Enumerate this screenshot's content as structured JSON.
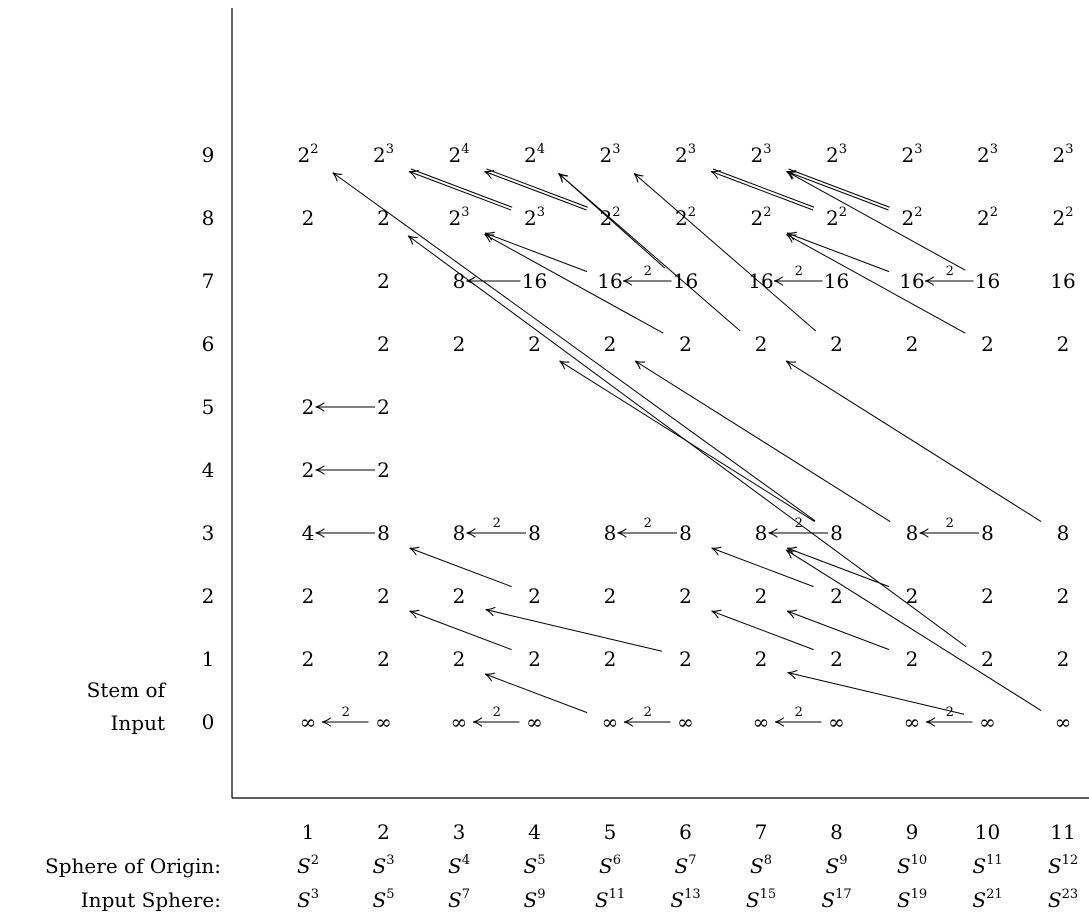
{
  "axis_captions": {
    "stem_line1": "Stem of",
    "stem_line2": "Input",
    "sphere_of_origin": "Sphere of Origin:",
    "input_sphere": "Input Sphere:"
  },
  "rows": [
    "0",
    "1",
    "2",
    "3",
    "4",
    "5",
    "6",
    "7",
    "8",
    "9"
  ],
  "columns": [
    "1",
    "2",
    "3",
    "4",
    "5",
    "6",
    "7",
    "8",
    "9",
    "10",
    "11"
  ],
  "sphere_of_origin": [
    {
      "base": "S",
      "exp": "2"
    },
    {
      "base": "S",
      "exp": "3"
    },
    {
      "base": "S",
      "exp": "4"
    },
    {
      "base": "S",
      "exp": "5"
    },
    {
      "base": "S",
      "exp": "6"
    },
    {
      "base": "S",
      "exp": "7"
    },
    {
      "base": "S",
      "exp": "8"
    },
    {
      "base": "S",
      "exp": "9"
    },
    {
      "base": "S",
      "exp": "10"
    },
    {
      "base": "S",
      "exp": "11"
    },
    {
      "base": "S",
      "exp": "12"
    }
  ],
  "input_sphere": [
    {
      "base": "S",
      "exp": "3"
    },
    {
      "base": "S",
      "exp": "5"
    },
    {
      "base": "S",
      "exp": "7"
    },
    {
      "base": "S",
      "exp": "9"
    },
    {
      "base": "S",
      "exp": "11"
    },
    {
      "base": "S",
      "exp": "13"
    },
    {
      "base": "S",
      "exp": "15"
    },
    {
      "base": "S",
      "exp": "17"
    },
    {
      "base": "S",
      "exp": "19"
    },
    {
      "base": "S",
      "exp": "21"
    },
    {
      "base": "S",
      "exp": "23"
    }
  ],
  "entries": [
    {
      "col": 1,
      "stem": 0,
      "text": "∞"
    },
    {
      "col": 2,
      "stem": 0,
      "text": "∞"
    },
    {
      "col": 3,
      "stem": 0,
      "text": "∞"
    },
    {
      "col": 4,
      "stem": 0,
      "text": "∞"
    },
    {
      "col": 5,
      "stem": 0,
      "text": "∞"
    },
    {
      "col": 6,
      "stem": 0,
      "text": "∞"
    },
    {
      "col": 7,
      "stem": 0,
      "text": "∞"
    },
    {
      "col": 8,
      "stem": 0,
      "text": "∞"
    },
    {
      "col": 9,
      "stem": 0,
      "text": "∞"
    },
    {
      "col": 10,
      "stem": 0,
      "text": "∞"
    },
    {
      "col": 11,
      "stem": 0,
      "text": "∞"
    },
    {
      "col": 1,
      "stem": 1,
      "text": "2"
    },
    {
      "col": 2,
      "stem": 1,
      "text": "2"
    },
    {
      "col": 3,
      "stem": 1,
      "text": "2"
    },
    {
      "col": 4,
      "stem": 1,
      "text": "2"
    },
    {
      "col": 5,
      "stem": 1,
      "text": "2"
    },
    {
      "col": 6,
      "stem": 1,
      "text": "2"
    },
    {
      "col": 7,
      "stem": 1,
      "text": "2"
    },
    {
      "col": 8,
      "stem": 1,
      "text": "2"
    },
    {
      "col": 9,
      "stem": 1,
      "text": "2"
    },
    {
      "col": 10,
      "stem": 1,
      "text": "2"
    },
    {
      "col": 11,
      "stem": 1,
      "text": "2"
    },
    {
      "col": 1,
      "stem": 2,
      "text": "2"
    },
    {
      "col": 2,
      "stem": 2,
      "text": "2"
    },
    {
      "col": 3,
      "stem": 2,
      "text": "2"
    },
    {
      "col": 4,
      "stem": 2,
      "text": "2"
    },
    {
      "col": 5,
      "stem": 2,
      "text": "2"
    },
    {
      "col": 6,
      "stem": 2,
      "text": "2"
    },
    {
      "col": 7,
      "stem": 2,
      "text": "2"
    },
    {
      "col": 8,
      "stem": 2,
      "text": "2"
    },
    {
      "col": 9,
      "stem": 2,
      "text": "2"
    },
    {
      "col": 10,
      "stem": 2,
      "text": "2"
    },
    {
      "col": 11,
      "stem": 2,
      "text": "2"
    },
    {
      "col": 1,
      "stem": 3,
      "text": "4"
    },
    {
      "col": 2,
      "stem": 3,
      "text": "8"
    },
    {
      "col": 3,
      "stem": 3,
      "text": "8"
    },
    {
      "col": 4,
      "stem": 3,
      "text": "8"
    },
    {
      "col": 5,
      "stem": 3,
      "text": "8"
    },
    {
      "col": 6,
      "stem": 3,
      "text": "8"
    },
    {
      "col": 7,
      "stem": 3,
      "text": "8"
    },
    {
      "col": 8,
      "stem": 3,
      "text": "8"
    },
    {
      "col": 9,
      "stem": 3,
      "text": "8"
    },
    {
      "col": 10,
      "stem": 3,
      "text": "8"
    },
    {
      "col": 11,
      "stem": 3,
      "text": "8"
    },
    {
      "col": 1,
      "stem": 4,
      "text": "2"
    },
    {
      "col": 2,
      "stem": 4,
      "text": "2"
    },
    {
      "col": 1,
      "stem": 5,
      "text": "2"
    },
    {
      "col": 2,
      "stem": 5,
      "text": "2"
    },
    {
      "col": 2,
      "stem": 6,
      "text": "2"
    },
    {
      "col": 3,
      "stem": 6,
      "text": "2"
    },
    {
      "col": 4,
      "stem": 6,
      "text": "2"
    },
    {
      "col": 5,
      "stem": 6,
      "text": "2"
    },
    {
      "col": 6,
      "stem": 6,
      "text": "2"
    },
    {
      "col": 7,
      "stem": 6,
      "text": "2"
    },
    {
      "col": 8,
      "stem": 6,
      "text": "2"
    },
    {
      "col": 9,
      "stem": 6,
      "text": "2"
    },
    {
      "col": 10,
      "stem": 6,
      "text": "2"
    },
    {
      "col": 11,
      "stem": 6,
      "text": "2"
    },
    {
      "col": 2,
      "stem": 7,
      "text": "2"
    },
    {
      "col": 3,
      "stem": 7,
      "text": "8"
    },
    {
      "col": 4,
      "stem": 7,
      "text": "16"
    },
    {
      "col": 5,
      "stem": 7,
      "text": "16"
    },
    {
      "col": 6,
      "stem": 7,
      "text": "16"
    },
    {
      "col": 7,
      "stem": 7,
      "text": "16"
    },
    {
      "col": 8,
      "stem": 7,
      "text": "16"
    },
    {
      "col": 9,
      "stem": 7,
      "text": "16"
    },
    {
      "col": 10,
      "stem": 7,
      "text": "16"
    },
    {
      "col": 11,
      "stem": 7,
      "text": "16"
    },
    {
      "col": 1,
      "stem": 8,
      "text": "2"
    },
    {
      "col": 2,
      "stem": 8,
      "text": "2"
    },
    {
      "col": 3,
      "stem": 8,
      "text": "2",
      "exp": "3"
    },
    {
      "col": 4,
      "stem": 8,
      "text": "2",
      "exp": "3"
    },
    {
      "col": 5,
      "stem": 8,
      "text": "2",
      "exp": "2"
    },
    {
      "col": 6,
      "stem": 8,
      "text": "2",
      "exp": "2"
    },
    {
      "col": 7,
      "stem": 8,
      "text": "2",
      "exp": "2"
    },
    {
      "col": 8,
      "stem": 8,
      "text": "2",
      "exp": "2"
    },
    {
      "col": 9,
      "stem": 8,
      "text": "2",
      "exp": "2"
    },
    {
      "col": 10,
      "stem": 8,
      "text": "2",
      "exp": "2"
    },
    {
      "col": 11,
      "stem": 8,
      "text": "2",
      "exp": "2"
    },
    {
      "col": 1,
      "stem": 9,
      "text": "2",
      "exp": "2"
    },
    {
      "col": 2,
      "stem": 9,
      "text": "2",
      "exp": "3"
    },
    {
      "col": 3,
      "stem": 9,
      "text": "2",
      "exp": "4"
    },
    {
      "col": 4,
      "stem": 9,
      "text": "2",
      "exp": "4"
    },
    {
      "col": 5,
      "stem": 9,
      "text": "2",
      "exp": "3"
    },
    {
      "col": 6,
      "stem": 9,
      "text": "2",
      "exp": "3"
    },
    {
      "col": 7,
      "stem": 9,
      "text": "2",
      "exp": "3"
    },
    {
      "col": 8,
      "stem": 9,
      "text": "2",
      "exp": "3"
    },
    {
      "col": 9,
      "stem": 9,
      "text": "2",
      "exp": "3"
    },
    {
      "col": 10,
      "stem": 9,
      "text": "2",
      "exp": "3"
    },
    {
      "col": 11,
      "stem": 9,
      "text": "2",
      "exp": "3"
    }
  ],
  "horizontal_arrows": [
    {
      "stem": 0,
      "from_col": 2,
      "to_col": 1,
      "label": "2"
    },
    {
      "stem": 0,
      "from_col": 4,
      "to_col": 3,
      "label": "2"
    },
    {
      "stem": 0,
      "from_col": 6,
      "to_col": 5,
      "label": "2"
    },
    {
      "stem": 0,
      "from_col": 8,
      "to_col": 7,
      "label": "2"
    },
    {
      "stem": 0,
      "from_col": 10,
      "to_col": 9,
      "label": "2"
    },
    {
      "stem": 3,
      "from_col": 2,
      "to_col": 1,
      "label": ""
    },
    {
      "stem": 3,
      "from_col": 4,
      "to_col": 3,
      "label": "2"
    },
    {
      "stem": 3,
      "from_col": 6,
      "to_col": 5,
      "label": "2"
    },
    {
      "stem": 3,
      "from_col": 8,
      "to_col": 7,
      "label": "2"
    },
    {
      "stem": 3,
      "from_col": 10,
      "to_col": 9,
      "label": "2"
    },
    {
      "stem": 4,
      "from_col": 2,
      "to_col": 1,
      "label": ""
    },
    {
      "stem": 5,
      "from_col": 2,
      "to_col": 1,
      "label": ""
    },
    {
      "stem": 7,
      "from_col": 4,
      "to_col": 3,
      "label": ""
    },
    {
      "stem": 7,
      "from_col": 6,
      "to_col": 5,
      "label": "2"
    },
    {
      "stem": 7,
      "from_col": 8,
      "to_col": 7,
      "label": "2"
    },
    {
      "stem": 7,
      "from_col": 10,
      "to_col": 9,
      "label": "2"
    }
  ],
  "diagonal_arrows": [
    {
      "from": [
        5,
        0
      ],
      "to": [
        3,
        1
      ],
      "lines": 1
    },
    {
      "from": [
        4,
        1
      ],
      "to": [
        2,
        2
      ],
      "lines": 1
    },
    {
      "from": [
        4,
        2
      ],
      "to": [
        2,
        3
      ],
      "lines": 1
    },
    {
      "from": [
        6,
        1
      ],
      "to": [
        3,
        2
      ],
      "lines": 1
    },
    {
      "from": [
        8,
        1
      ],
      "to": [
        6,
        2
      ],
      "lines": 1
    },
    {
      "from": [
        8,
        2
      ],
      "to": [
        6,
        3
      ],
      "lines": 1
    },
    {
      "from": [
        10,
        0
      ],
      "to": [
        7,
        1
      ],
      "lines": 1
    },
    {
      "from": [
        9,
        1
      ],
      "to": [
        7,
        2
      ],
      "lines": 1
    },
    {
      "from": [
        11,
        0
      ],
      "to": [
        7,
        3
      ],
      "lines": 1
    },
    {
      "from": [
        9,
        2
      ],
      "to": [
        7,
        3
      ],
      "lines": 1
    },
    {
      "from": [
        10,
        1
      ],
      "to": [
        2,
        8
      ],
      "lines": 1
    },
    {
      "from": [
        8,
        3
      ],
      "to": [
        1,
        9
      ],
      "lines": 1
    },
    {
      "from": [
        8,
        3
      ],
      "to": [
        4,
        6
      ],
      "lines": 1
    },
    {
      "from": [
        9,
        3
      ],
      "to": [
        5,
        6
      ],
      "lines": 1
    },
    {
      "from": [
        11,
        3
      ],
      "to": [
        7,
        6
      ],
      "lines": 1
    },
    {
      "from": [
        6,
        6
      ],
      "to": [
        3,
        8
      ],
      "lines": 1
    },
    {
      "from": [
        5,
        7
      ],
      "to": [
        3,
        8
      ],
      "lines": 1
    },
    {
      "from": [
        8,
        6
      ],
      "to": [
        5,
        9
      ],
      "lines": 1
    },
    {
      "from": [
        6,
        7
      ],
      "to": [
        4,
        9
      ],
      "lines": 1
    },
    {
      "from": [
        7,
        6
      ],
      "to": [
        4,
        9
      ],
      "lines": 1
    },
    {
      "from": [
        10,
        6
      ],
      "to": [
        7,
        8
      ],
      "lines": 1
    },
    {
      "from": [
        9,
        7
      ],
      "to": [
        7,
        8
      ],
      "lines": 1
    },
    {
      "from": [
        4,
        8
      ],
      "to": [
        2,
        9
      ],
      "lines": 2
    },
    {
      "from": [
        5,
        8
      ],
      "to": [
        3,
        9
      ],
      "lines": 2
    },
    {
      "from": [
        8,
        8
      ],
      "to": [
        6,
        9
      ],
      "lines": 2
    },
    {
      "from": [
        9,
        8
      ],
      "to": [
        7,
        9
      ],
      "lines": 2
    },
    {
      "from": [
        10,
        7
      ],
      "to": [
        7,
        9
      ],
      "lines": 1
    }
  ]
}
